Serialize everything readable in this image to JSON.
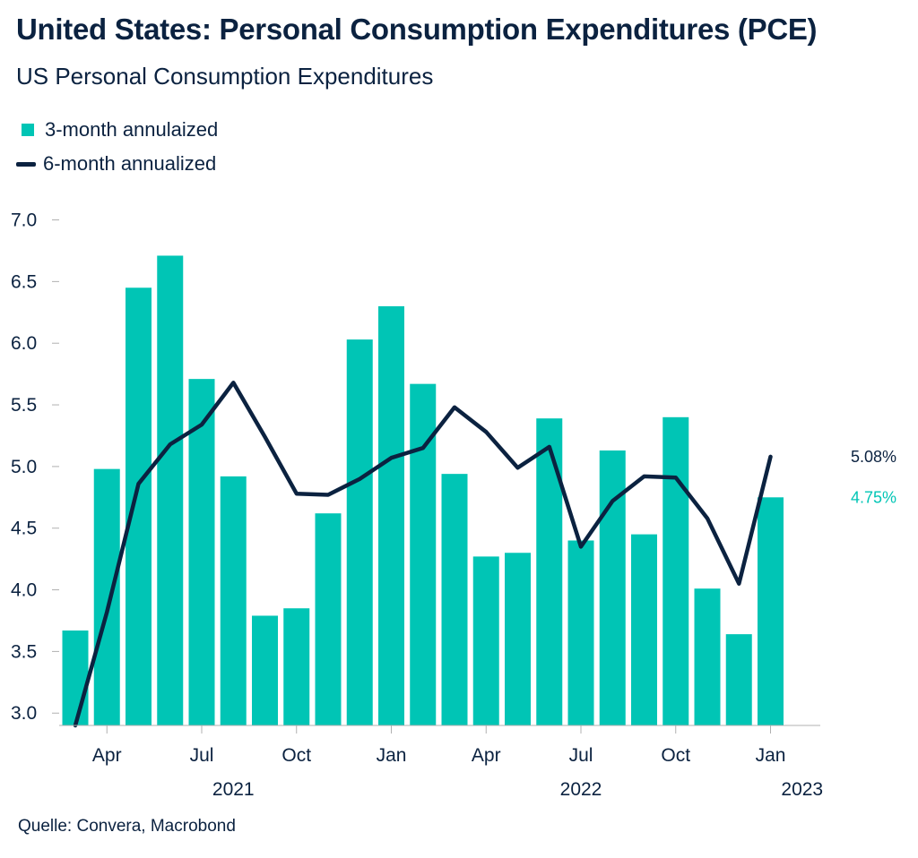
{
  "title": "United States: Personal Consumption Expenditures (PCE)",
  "subtitle": "US Personal Consumption Expenditures",
  "source": "Quelle: Convera, Macrobond",
  "colors": {
    "bar": "#00c5b5",
    "line": "#0b2240",
    "text": "#0b2240",
    "axis": "#b0b0b0"
  },
  "chart_data": {
    "type": "bar",
    "ylim": [
      2.9,
      7.2
    ],
    "yticks": [
      "3.0",
      "3.5",
      "4.0",
      "4.5",
      "5.0",
      "5.5",
      "6.0",
      "6.5",
      "7.0"
    ],
    "categories": [
      "2021-03",
      "2021-04",
      "2021-05",
      "2021-06",
      "2021-07",
      "2021-08",
      "2021-09",
      "2021-10",
      "2021-11",
      "2021-12",
      "2022-01",
      "2022-02",
      "2022-03",
      "2022-04",
      "2022-05",
      "2022-06",
      "2022-07",
      "2022-08",
      "2022-09",
      "2022-10",
      "2022-11",
      "2022-12",
      "2023-01"
    ],
    "xticks": [
      {
        "label": "Apr",
        "index": 1
      },
      {
        "label": "Jul",
        "index": 4
      },
      {
        "label": "Oct",
        "index": 7
      },
      {
        "label": "Jan",
        "index": 10
      },
      {
        "label": "Apr",
        "index": 13
      },
      {
        "label": "Jul",
        "index": 16
      },
      {
        "label": "Oct",
        "index": 19
      },
      {
        "label": "Jan",
        "index": 22
      }
    ],
    "years": [
      {
        "label": "2021",
        "index": 5
      },
      {
        "label": "2022",
        "index": 16
      },
      {
        "label": "2023",
        "index": 23
      }
    ],
    "series": [
      {
        "name": "3-month annulaized",
        "kind": "bar",
        "values": [
          3.67,
          4.98,
          6.45,
          6.71,
          5.71,
          4.92,
          3.79,
          3.85,
          4.62,
          6.03,
          6.3,
          5.67,
          4.94,
          4.27,
          4.3,
          5.39,
          4.4,
          5.13,
          4.45,
          5.4,
          4.01,
          3.64,
          4.75
        ]
      },
      {
        "name": "6-month annualized",
        "kind": "line",
        "values": [
          2.9,
          3.82,
          4.86,
          5.18,
          5.34,
          5.68,
          5.24,
          4.78,
          4.77,
          4.9,
          5.07,
          5.15,
          5.48,
          5.28,
          4.99,
          5.16,
          4.35,
          4.72,
          4.92,
          4.91,
          4.58,
          4.05,
          5.08
        ]
      }
    ],
    "end_labels": {
      "line": "5.08%",
      "bar": "4.75%"
    }
  }
}
